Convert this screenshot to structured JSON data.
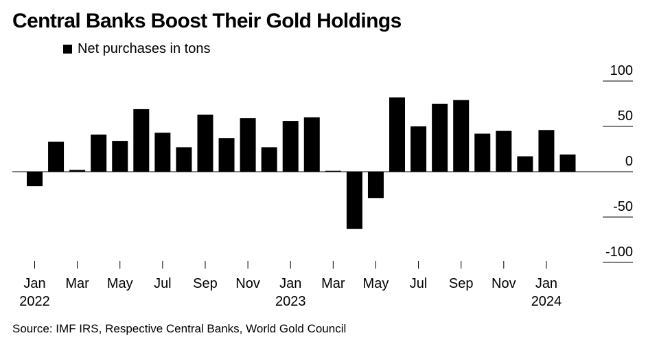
{
  "chart_data": {
    "type": "bar",
    "title": "Central Banks Boost Their Gold Holdings",
    "legend": [
      "Net purchases in tons"
    ],
    "legend_placement": "top-left",
    "source": "Source: IMF IRS, Respective Central Banks, World Gold Council",
    "ylim": [
      -100,
      100
    ],
    "yticks": [
      100,
      50,
      0,
      -50,
      -100
    ],
    "y_axis_side": "right",
    "grid": false,
    "color": "#000000",
    "categories": [
      "2022-01",
      "2022-02",
      "2022-03",
      "2022-04",
      "2022-05",
      "2022-06",
      "2022-07",
      "2022-08",
      "2022-09",
      "2022-10",
      "2022-11",
      "2022-12",
      "2023-01",
      "2023-02",
      "2023-03",
      "2023-04",
      "2023-05",
      "2023-06",
      "2023-07",
      "2023-08",
      "2023-09",
      "2023-10",
      "2023-11",
      "2023-12",
      "2024-01",
      "2024-02"
    ],
    "series": [
      {
        "name": "Net purchases in tons",
        "values": [
          -16,
          33,
          2,
          41,
          34,
          69,
          43,
          27,
          63,
          37,
          59,
          27,
          56,
          60,
          1,
          -63,
          -29,
          82,
          50,
          75,
          79,
          42,
          45,
          17,
          46,
          19
        ]
      }
    ],
    "xtick_labels": [
      {
        "category": "2022-01",
        "month": "Jan",
        "year": "2022"
      },
      {
        "category": "2022-03",
        "month": "Mar",
        "year": ""
      },
      {
        "category": "2022-05",
        "month": "May",
        "year": ""
      },
      {
        "category": "2022-07",
        "month": "Jul",
        "year": ""
      },
      {
        "category": "2022-09",
        "month": "Sep",
        "year": ""
      },
      {
        "category": "2022-11",
        "month": "Nov",
        "year": ""
      },
      {
        "category": "2023-01",
        "month": "Jan",
        "year": "2023"
      },
      {
        "category": "2023-03",
        "month": "Mar",
        "year": ""
      },
      {
        "category": "2023-05",
        "month": "May",
        "year": ""
      },
      {
        "category": "2023-07",
        "month": "Jul",
        "year": ""
      },
      {
        "category": "2023-09",
        "month": "Sep",
        "year": ""
      },
      {
        "category": "2023-11",
        "month": "Nov",
        "year": ""
      },
      {
        "category": "2024-01",
        "month": "Jan",
        "year": "2024"
      }
    ]
  }
}
